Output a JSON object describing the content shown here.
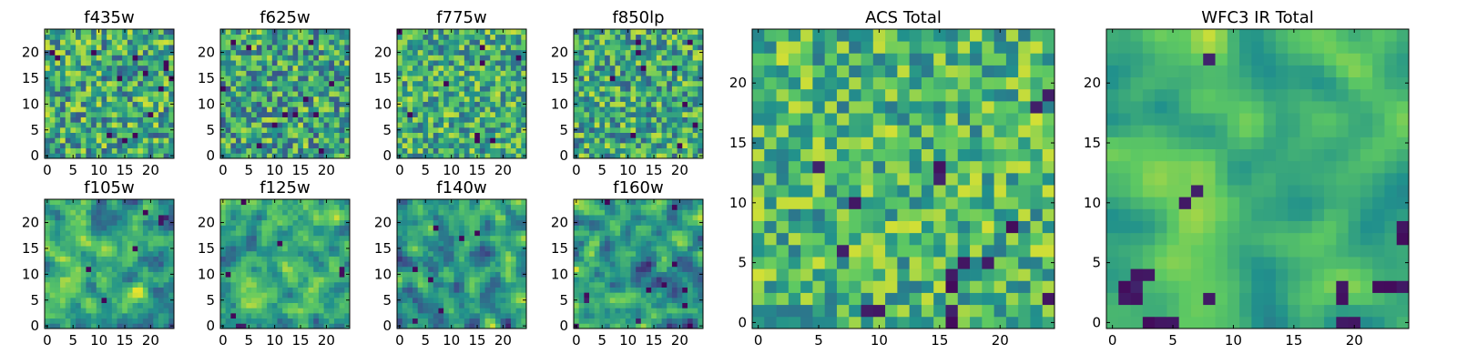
{
  "colormap": [
    "#440154",
    "#3b528b",
    "#21918c",
    "#5ec962",
    "#fde725"
  ],
  "chart_data": [
    {
      "type": "heatmap",
      "title": "f435w",
      "grid": false,
      "ncols": 25,
      "nrows": 25,
      "xlim": [
        -0.5,
        24.5
      ],
      "ylim": [
        -0.5,
        24.5
      ],
      "xticks": [
        0,
        5,
        10,
        15,
        20
      ],
      "yticks": [
        0,
        5,
        10,
        15,
        20
      ],
      "field": {
        "seed": 11,
        "smooth": 0,
        "base": 0.6,
        "noise": 0.42,
        "dark_spots": 14,
        "dark_cells": []
      }
    },
    {
      "type": "heatmap",
      "title": "f625w",
      "grid": false,
      "ncols": 25,
      "nrows": 25,
      "xlim": [
        -0.5,
        24.5
      ],
      "ylim": [
        -0.5,
        24.5
      ],
      "xticks": [
        0,
        5,
        10,
        15,
        20
      ],
      "yticks": [
        0,
        5,
        10,
        15,
        20
      ],
      "field": {
        "seed": 23,
        "smooth": 0,
        "base": 0.58,
        "noise": 0.42,
        "dark_spots": 12,
        "dark_cells": []
      }
    },
    {
      "type": "heatmap",
      "title": "f775w",
      "grid": false,
      "ncols": 25,
      "nrows": 25,
      "xlim": [
        -0.5,
        24.5
      ],
      "ylim": [
        -0.5,
        24.5
      ],
      "xticks": [
        0,
        5,
        10,
        15,
        20
      ],
      "yticks": [
        0,
        5,
        10,
        15,
        20
      ],
      "field": {
        "seed": 37,
        "smooth": 0,
        "base": 0.62,
        "noise": 0.38,
        "dark_spots": 9,
        "dark_cells": []
      }
    },
    {
      "type": "heatmap",
      "title": "f850lp",
      "grid": false,
      "ncols": 25,
      "nrows": 25,
      "xlim": [
        -0.5,
        24.5
      ],
      "ylim": [
        -0.5,
        24.5
      ],
      "xticks": [
        0,
        5,
        10,
        15,
        20
      ],
      "yticks": [
        0,
        5,
        10,
        15,
        20
      ],
      "field": {
        "seed": 41,
        "smooth": 0,
        "base": 0.6,
        "noise": 0.4,
        "dark_spots": 10,
        "dark_cells": []
      }
    },
    {
      "type": "heatmap",
      "title": "f105w",
      "grid": false,
      "ncols": 25,
      "nrows": 25,
      "xlim": [
        -0.5,
        24.5
      ],
      "ylim": [
        -0.5,
        24.5
      ],
      "xticks": [
        0,
        5,
        10,
        15,
        20
      ],
      "yticks": [
        0,
        5,
        10,
        15,
        20
      ],
      "field": {
        "seed": 53,
        "smooth": 1,
        "base": 0.6,
        "noise": 0.55,
        "dark_spots": 4,
        "dark_cells": [
          [
            22,
            21
          ],
          [
            23,
            21
          ],
          [
            22,
            20
          ]
        ]
      }
    },
    {
      "type": "heatmap",
      "title": "f125w",
      "grid": false,
      "ncols": 25,
      "nrows": 25,
      "xlim": [
        -0.5,
        24.5
      ],
      "ylim": [
        -0.5,
        24.5
      ],
      "xticks": [
        0,
        5,
        10,
        15,
        20
      ],
      "yticks": [
        0,
        5,
        10,
        15,
        20
      ],
      "field": {
        "seed": 67,
        "smooth": 1,
        "base": 0.62,
        "noise": 0.52,
        "dark_spots": 4,
        "dark_cells": [
          [
            23,
            11
          ],
          [
            23,
            10
          ],
          [
            3,
            0
          ],
          [
            4,
            0
          ]
        ]
      }
    },
    {
      "type": "heatmap",
      "title": "f140w",
      "grid": false,
      "ncols": 25,
      "nrows": 25,
      "xlim": [
        -0.5,
        24.5
      ],
      "ylim": [
        -0.5,
        24.5
      ],
      "xticks": [
        0,
        5,
        10,
        15,
        20
      ],
      "yticks": [
        0,
        5,
        10,
        15,
        20
      ],
      "field": {
        "seed": 79,
        "smooth": 1,
        "base": 0.55,
        "noise": 0.6,
        "dark_spots": 5,
        "dark_cells": [
          [
            8,
            3
          ],
          [
            3,
            1
          ]
        ]
      }
    },
    {
      "type": "heatmap",
      "title": "f160w",
      "grid": false,
      "ncols": 25,
      "nrows": 25,
      "xlim": [
        -0.5,
        24.5
      ],
      "ylim": [
        -0.5,
        24.5
      ],
      "xticks": [
        0,
        5,
        10,
        15,
        20
      ],
      "yticks": [
        0,
        5,
        10,
        15,
        20
      ],
      "field": {
        "seed": 83,
        "smooth": 1,
        "base": 0.55,
        "noise": 0.62,
        "dark_spots": 7,
        "dark_cells": [
          [
            2,
            6
          ],
          [
            2,
            5
          ],
          [
            12,
            1
          ],
          [
            0,
            0
          ]
        ]
      }
    },
    {
      "type": "heatmap",
      "title": "ACS Total",
      "grid": false,
      "ncols": 25,
      "nrows": 25,
      "xlim": [
        -0.5,
        24.5
      ],
      "ylim": [
        -0.5,
        24.5
      ],
      "xticks": [
        0,
        5,
        10,
        15,
        20
      ],
      "yticks": [
        0,
        5,
        10,
        15,
        20
      ],
      "field": {
        "seed": 97,
        "smooth": 0,
        "base": 0.66,
        "noise": 0.34,
        "dark_spots": 0,
        "dark_cells": [
          [
            5,
            13
          ],
          [
            15,
            13
          ],
          [
            15,
            12
          ],
          [
            8,
            10
          ],
          [
            21,
            8
          ],
          [
            7,
            6
          ],
          [
            17,
            5
          ],
          [
            19,
            5
          ],
          [
            16,
            4
          ],
          [
            16,
            3
          ],
          [
            24,
            2
          ],
          [
            10,
            1
          ],
          [
            16,
            1
          ],
          [
            16,
            0
          ],
          [
            23,
            18
          ],
          [
            24,
            19
          ],
          [
            9,
            1
          ]
        ]
      }
    },
    {
      "type": "heatmap",
      "title": "WFC3 IR Total",
      "grid": false,
      "ncols": 25,
      "nrows": 25,
      "xlim": [
        -0.5,
        24.5
      ],
      "ylim": [
        -0.5,
        24.5
      ],
      "xticks": [
        0,
        5,
        10,
        15,
        20
      ],
      "yticks": [
        0,
        5,
        10,
        15,
        20
      ],
      "field": {
        "seed": 101,
        "smooth": 2,
        "base": 0.66,
        "noise": 0.5,
        "dark_spots": 0,
        "dark_cells": [
          [
            1,
            3
          ],
          [
            2,
            3
          ],
          [
            1,
            2
          ],
          [
            2,
            4
          ],
          [
            3,
            4
          ],
          [
            2,
            2
          ],
          [
            8,
            2
          ],
          [
            19,
            3
          ],
          [
            19,
            2
          ],
          [
            20,
            0
          ],
          [
            19,
            0
          ],
          [
            22,
            3
          ],
          [
            23,
            3
          ],
          [
            24,
            3
          ],
          [
            6,
            10
          ],
          [
            7,
            11
          ],
          [
            8,
            22
          ],
          [
            24,
            8
          ],
          [
            24,
            7
          ],
          [
            3,
            0
          ],
          [
            4,
            0
          ],
          [
            5,
            0
          ]
        ]
      }
    }
  ]
}
